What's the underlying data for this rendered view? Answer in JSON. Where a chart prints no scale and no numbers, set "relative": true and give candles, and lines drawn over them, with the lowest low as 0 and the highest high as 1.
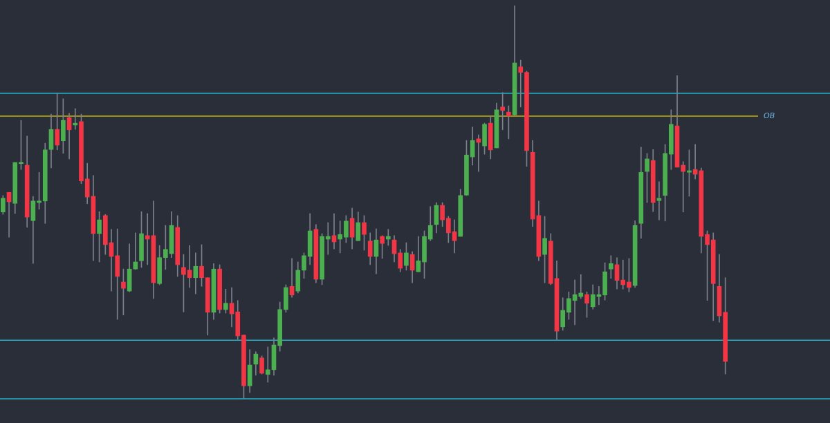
{
  "chart_data": {
    "type": "candlestick",
    "relative": true,
    "categories": [
      null,
      null,
      null,
      null,
      null,
      null,
      null,
      null,
      null,
      null,
      null,
      null,
      null,
      null,
      null,
      null,
      null,
      null,
      null,
      null,
      null,
      null,
      null,
      null,
      null,
      null,
      null,
      null,
      null,
      null,
      null,
      null,
      null,
      null,
      null,
      null,
      null,
      null,
      null,
      null,
      null,
      null,
      null,
      null,
      null,
      null,
      null,
      null,
      null,
      null,
      null,
      null,
      null,
      null,
      null,
      null,
      null,
      null,
      null,
      null,
      null,
      null,
      null,
      null,
      null,
      null,
      null,
      null,
      null,
      null,
      null,
      null,
      null,
      null,
      null,
      null,
      null,
      null,
      null,
      null,
      null,
      null,
      null,
      null,
      null,
      null,
      null,
      null,
      null,
      null,
      null,
      null,
      null,
      null,
      null,
      null,
      null,
      null,
      null,
      null,
      null,
      null,
      null,
      null,
      null,
      null,
      null,
      null,
      null,
      null,
      null,
      null,
      null,
      null,
      null,
      null,
      null,
      null,
      null,
      null,
      null
    ],
    "ohlc": [
      [
        0.475,
        0.517,
        0.469,
        0.51
      ],
      [
        0.525,
        0.525,
        0.411,
        0.501
      ],
      [
        0.497,
        0.601,
        0.471,
        0.601
      ],
      [
        0.598,
        0.708,
        0.583,
        0.599
      ],
      [
        0.594,
        0.668,
        0.436,
        0.462
      ],
      [
        0.453,
        0.515,
        0.344,
        0.503
      ],
      [
        0.499,
        0.576,
        0.482,
        0.503
      ],
      [
        0.503,
        0.65,
        0.446,
        0.633
      ],
      [
        0.634,
        0.724,
        0.587,
        0.685
      ],
      [
        0.685,
        0.777,
        0.633,
        0.645
      ],
      [
        0.656,
        0.763,
        0.624,
        0.708
      ],
      [
        0.715,
        0.726,
        0.61,
        0.684
      ],
      [
        0.696,
        0.738,
        0.685,
        0.701
      ],
      [
        0.705,
        0.724,
        0.547,
        0.554
      ],
      [
        0.559,
        0.599,
        0.496,
        0.513
      ],
      [
        0.515,
        0.568,
        0.351,
        0.42
      ],
      [
        0.42,
        0.476,
        0.348,
        0.455
      ],
      [
        0.466,
        0.469,
        0.367,
        0.392
      ],
      [
        0.397,
        0.431,
        0.274,
        0.362
      ],
      [
        0.364,
        0.432,
        0.202,
        0.311
      ],
      [
        0.297,
        0.33,
        0.213,
        0.281
      ],
      [
        0.274,
        0.394,
        0.272,
        0.33
      ],
      [
        0.33,
        0.422,
        0.329,
        0.348
      ],
      [
        0.351,
        0.476,
        0.334,
        0.42
      ],
      [
        0.415,
        0.471,
        0.341,
        0.406
      ],
      [
        0.415,
        0.503,
        0.255,
        0.295
      ],
      [
        0.293,
        0.39,
        0.29,
        0.359
      ],
      [
        0.359,
        0.441,
        0.329,
        0.38
      ],
      [
        0.369,
        0.476,
        0.359,
        0.441
      ],
      [
        0.436,
        0.466,
        0.311,
        0.341
      ],
      [
        0.334,
        0.367,
        0.221,
        0.316
      ],
      [
        0.327,
        0.39,
        0.283,
        0.308
      ],
      [
        0.308,
        0.371,
        0.267,
        0.337
      ],
      [
        0.337,
        0.392,
        0.286,
        0.308
      ],
      [
        0.308,
        0.308,
        0.162,
        0.22
      ],
      [
        0.22,
        0.344,
        0.202,
        0.33
      ],
      [
        0.33,
        0.341,
        0.218,
        0.227
      ],
      [
        0.227,
        0.279,
        0.218,
        0.243
      ],
      [
        0.243,
        0.283,
        0.183,
        0.216
      ],
      [
        0.221,
        0.25,
        0.151,
        0.16
      ],
      [
        0.162,
        0.162,
        0,
        0.033
      ],
      [
        0.033,
        0.125,
        0.016,
        0.086
      ],
      [
        0.088,
        0.12,
        0.06,
        0.114
      ],
      [
        0.104,
        0.109,
        0.063,
        0.065
      ],
      [
        0.062,
        0.132,
        0.042,
        0.074
      ],
      [
        0.074,
        0.155,
        0.06,
        0.137
      ],
      [
        0.135,
        0.246,
        0.121,
        0.227
      ],
      [
        0.227,
        0.29,
        0.22,
        0.283
      ],
      [
        0.286,
        0.357,
        0.258,
        0.264
      ],
      [
        0.274,
        0.348,
        0.269,
        0.327
      ],
      [
        0.327,
        0.371,
        0.306,
        0.364
      ],
      [
        0.362,
        0.471,
        0.341,
        0.427
      ],
      [
        0.431,
        0.443,
        0.295,
        0.304
      ],
      [
        0.304,
        0.42,
        0.29,
        0.413
      ],
      [
        0.406,
        0.448,
        0.367,
        0.413
      ],
      [
        0.415,
        0.471,
        0.381,
        0.399
      ],
      [
        0.406,
        0.452,
        0.371,
        0.418
      ],
      [
        0.411,
        0.466,
        0.397,
        0.452
      ],
      [
        0.459,
        0.485,
        0.381,
        0.411
      ],
      [
        0.402,
        0.475,
        0.402,
        0.448
      ],
      [
        0.448,
        0.466,
        0.378,
        0.418
      ],
      [
        0.401,
        0.422,
        0.341,
        0.362
      ],
      [
        0.362,
        0.432,
        0.318,
        0.404
      ],
      [
        0.413,
        0.415,
        0.357,
        0.395
      ],
      [
        0.406,
        0.431,
        0.39,
        0.413
      ],
      [
        0.404,
        0.415,
        0.348,
        0.369
      ],
      [
        0.371,
        0.38,
        0.323,
        0.332
      ],
      [
        0.339,
        0.397,
        0.327,
        0.371
      ],
      [
        0.367,
        0.374,
        0.295,
        0.327
      ],
      [
        0.323,
        0.413,
        0.323,
        0.351
      ],
      [
        0.348,
        0.427,
        0.306,
        0.413
      ],
      [
        0.406,
        0.489,
        0.402,
        0.441
      ],
      [
        0.443,
        0.499,
        0.422,
        0.492
      ],
      [
        0.492,
        0.499,
        0.438,
        0.455
      ],
      [
        0.459,
        0.464,
        0.397,
        0.422
      ],
      [
        0.425,
        0.455,
        0.371,
        0.402
      ],
      [
        0.413,
        0.533,
        0.413,
        0.517
      ],
      [
        0.518,
        0.657,
        0.517,
        0.62
      ],
      [
        0.615,
        0.691,
        0.594,
        0.657
      ],
      [
        0.661,
        0.671,
        0.578,
        0.652
      ],
      [
        0.643,
        0.701,
        0.622,
        0.698
      ],
      [
        0.701,
        0.719,
        0.61,
        0.633
      ],
      [
        0.638,
        0.752,
        0.638,
        0.735
      ],
      [
        0.742,
        0.779,
        0.684,
        0.733
      ],
      [
        0.729,
        0.745,
        0.661,
        0.719
      ],
      [
        0.722,
        1,
        0.721,
        0.854
      ],
      [
        0.844,
        0.861,
        0.742,
        0.83
      ],
      [
        0.83,
        0.833,
        0.591,
        0.631
      ],
      [
        0.627,
        0.657,
        0.438,
        0.457
      ],
      [
        0.466,
        0.503,
        0.351,
        0.362
      ],
      [
        0.367,
        0.464,
        0.295,
        0.408
      ],
      [
        0.401,
        0.42,
        0.29,
        0.293
      ],
      [
        0.306,
        0.351,
        0.149,
        0.172
      ],
      [
        0.183,
        0.257,
        0.174,
        0.225
      ],
      [
        0.22,
        0.272,
        0.202,
        0.255
      ],
      [
        0.25,
        0.302,
        0.188,
        0.265
      ],
      [
        0.26,
        0.316,
        0.255,
        0.269
      ],
      [
        0.265,
        0.272,
        0.207,
        0.243
      ],
      [
        0.234,
        0.29,
        0.228,
        0.265
      ],
      [
        0.26,
        0.286,
        0.239,
        0.265
      ],
      [
        0.264,
        0.346,
        0.251,
        0.323
      ],
      [
        0.33,
        0.364,
        0.306,
        0.344
      ],
      [
        0.341,
        0.359,
        0.279,
        0.301
      ],
      [
        0.302,
        0.353,
        0.279,
        0.29
      ],
      [
        0.297,
        0.357,
        0.272,
        0.283
      ],
      [
        0.288,
        0.453,
        0.283,
        0.441
      ],
      [
        0.446,
        0.64,
        0.408,
        0.576
      ],
      [
        0.578,
        0.624,
        0.499,
        0.61
      ],
      [
        0.606,
        0.634,
        0.476,
        0.499
      ],
      [
        0.504,
        0.552,
        0.455,
        0.51
      ],
      [
        0.517,
        0.647,
        0.452,
        0.624
      ],
      [
        0.622,
        0.735,
        0.583,
        0.698
      ],
      [
        0.694,
        0.822,
        0.589,
        0.589
      ],
      [
        0.594,
        0.603,
        0.475,
        0.578
      ],
      [
        0.576,
        0.633,
        0.515,
        0.58
      ],
      [
        0.583,
        0.647,
        0.559,
        0.571
      ],
      [
        0.58,
        0.587,
        0.371,
        0.413
      ],
      [
        0.418,
        0.427,
        0.25,
        0.392
      ],
      [
        0.404,
        0.422,
        0.199,
        0.293
      ],
      [
        0.286,
        0.367,
        0.195,
        0.211
      ],
      [
        0.22,
        0.308,
        0.063,
        0.095
      ]
    ],
    "ref_lines": [
      {
        "axis": "y",
        "value": 0.777,
        "color": "#22b3c9"
      },
      {
        "axis": "y",
        "value": 0.719,
        "color": "#c9b400",
        "label": "OB"
      },
      {
        "axis": "y",
        "value": 0.149,
        "color": "#22b3c9"
      },
      {
        "axis": "y",
        "value": 0,
        "color": "#22b3c9"
      }
    ],
    "legend": false
  }
}
